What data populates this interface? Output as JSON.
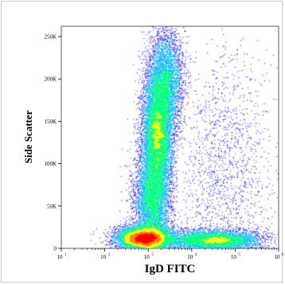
{
  "chart_data": {
    "type": "scatter",
    "style": "flow cytometry pseudocolor density dot plot",
    "xlabel": "IgD FITC",
    "ylabel": "Side Scatter",
    "x_scale": "log",
    "xlim": [
      10,
      1000000
    ],
    "x_ticks": [
      {
        "value": 10,
        "base": "10",
        "exp": "1"
      },
      {
        "value": 100,
        "base": "10",
        "exp": "2"
      },
      {
        "value": 1000,
        "base": "10",
        "exp": "3"
      },
      {
        "value": 10000,
        "base": "10",
        "exp": "4"
      },
      {
        "value": 100000,
        "base": "10",
        "exp": "5"
      },
      {
        "value": 1000000,
        "base": "10",
        "exp": "6"
      }
    ],
    "y_scale": "linear",
    "ylim": [
      0,
      262144
    ],
    "y_ticks": [
      {
        "value": 0,
        "label": "0"
      },
      {
        "value": 50000,
        "label": "50K"
      },
      {
        "value": 100000,
        "label": "100K"
      },
      {
        "value": 150000,
        "label": "150K"
      },
      {
        "value": 200000,
        "label": "200K"
      },
      {
        "value": 250000,
        "label": "250K"
      }
    ],
    "color_scale": [
      "#0000ff",
      "#00b4ff",
      "#00ff80",
      "#ffff00",
      "#ff8000",
      "#ff0000"
    ],
    "populations": [
      {
        "x_center": 1600,
        "y_center": 135000,
        "x_spread_decades": 0.17,
        "y_spread": 38000,
        "density": 1.0
      },
      {
        "x_center": 1200,
        "y_center": 55000,
        "x_spread_decades": 0.2,
        "y_spread": 30000,
        "density": 0.55
      },
      {
        "x_center": 2500,
        "y_center": 200000,
        "x_spread_decades": 0.2,
        "y_spread": 30000,
        "density": 0.4
      },
      {
        "x_center": 800,
        "y_center": 12000,
        "x_spread_decades": 0.3,
        "y_spread": 7000,
        "density": 0.9
      },
      {
        "x_center": 30000,
        "y_center": 10000,
        "x_spread_decades": 0.55,
        "y_spread": 6000,
        "density": 0.55
      },
      {
        "x_center": 60000,
        "y_center": 90000,
        "x_spread_decades": 0.55,
        "y_spread": 70000,
        "density": 0.18
      }
    ]
  }
}
